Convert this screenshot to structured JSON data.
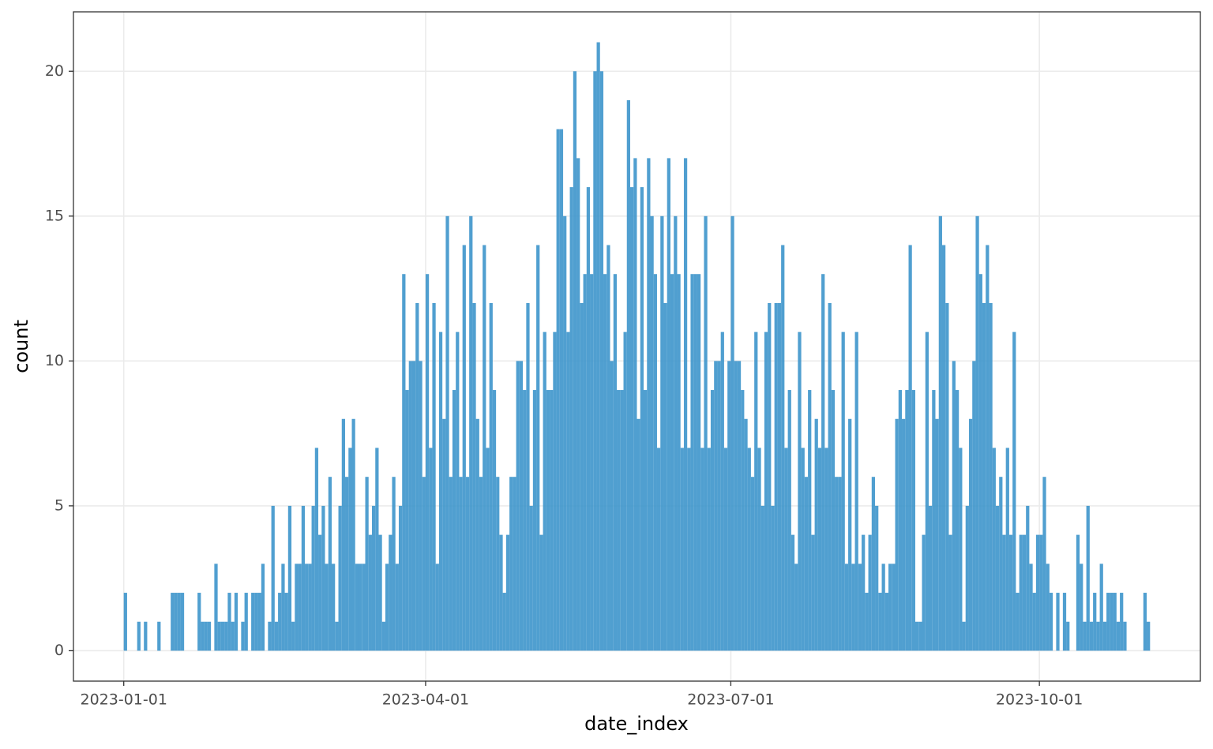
{
  "chart_data": {
    "type": "histogram",
    "x_label": "date_index",
    "y_label": "count",
    "color": "#3d95cb",
    "grid": true,
    "xlim": [
      "2022-12-17",
      "2023-11-18"
    ],
    "ylim": [
      -1.05,
      22.05
    ],
    "xticks": [
      "2023-01-01",
      "2023-04-01",
      "2023-07-01",
      "2023-10-01"
    ],
    "yticks": [
      0,
      5,
      10,
      15,
      20
    ],
    "bins": [
      "2023-01-01",
      "2023-01-02",
      "2023-01-03",
      "2023-01-04",
      "2023-01-05",
      "2023-01-06",
      "2023-01-07",
      "2023-01-08",
      "2023-01-09",
      "2023-01-10",
      "2023-01-11",
      "2023-01-12",
      "2023-01-13",
      "2023-01-14",
      "2023-01-15",
      "2023-01-16",
      "2023-01-17",
      "2023-01-18",
      "2023-01-19",
      "2023-01-20",
      "2023-01-21",
      "2023-01-22",
      "2023-01-23",
      "2023-01-24",
      "2023-01-25",
      "2023-01-26",
      "2023-01-27",
      "2023-01-28",
      "2023-01-29",
      "2023-01-30",
      "2023-01-31",
      "2023-02-01",
      "2023-02-02",
      "2023-02-03",
      "2023-02-04",
      "2023-02-05",
      "2023-02-06",
      "2023-02-07",
      "2023-02-08",
      "2023-02-09",
      "2023-02-10",
      "2023-02-11",
      "2023-02-12",
      "2023-02-13",
      "2023-02-14",
      "2023-02-15",
      "2023-02-16",
      "2023-02-17",
      "2023-02-18",
      "2023-02-19",
      "2023-02-20",
      "2023-02-21",
      "2023-02-22",
      "2023-02-23",
      "2023-02-24",
      "2023-02-25",
      "2023-02-26",
      "2023-02-27",
      "2023-02-28",
      "2023-03-01",
      "2023-03-02",
      "2023-03-03",
      "2023-03-04",
      "2023-03-05",
      "2023-03-06",
      "2023-03-07",
      "2023-03-08",
      "2023-03-09",
      "2023-03-10",
      "2023-03-11",
      "2023-03-12",
      "2023-03-13",
      "2023-03-14",
      "2023-03-15",
      "2023-03-16",
      "2023-03-17",
      "2023-03-18",
      "2023-03-19",
      "2023-03-20",
      "2023-03-21",
      "2023-03-22",
      "2023-03-23",
      "2023-03-24",
      "2023-03-25",
      "2023-03-26",
      "2023-03-27",
      "2023-03-28",
      "2023-03-29",
      "2023-03-30",
      "2023-03-31",
      "2023-04-01",
      "2023-04-02",
      "2023-04-03",
      "2023-04-04",
      "2023-04-05",
      "2023-04-06",
      "2023-04-07",
      "2023-04-08",
      "2023-04-09",
      "2023-04-10",
      "2023-04-11",
      "2023-04-12",
      "2023-04-13",
      "2023-04-14",
      "2023-04-15",
      "2023-04-16",
      "2023-04-17",
      "2023-04-18",
      "2023-04-19",
      "2023-04-20",
      "2023-04-21",
      "2023-04-22",
      "2023-04-23",
      "2023-04-24",
      "2023-04-25",
      "2023-04-26",
      "2023-04-27",
      "2023-04-28",
      "2023-04-29",
      "2023-04-30",
      "2023-05-01",
      "2023-05-02",
      "2023-05-03",
      "2023-05-04",
      "2023-05-05",
      "2023-05-06",
      "2023-05-07",
      "2023-05-08",
      "2023-05-09",
      "2023-05-10",
      "2023-05-11",
      "2023-05-12",
      "2023-05-13",
      "2023-05-14",
      "2023-05-15",
      "2023-05-16",
      "2023-05-17",
      "2023-05-18",
      "2023-05-19",
      "2023-05-20",
      "2023-05-21",
      "2023-05-22",
      "2023-05-23",
      "2023-05-24",
      "2023-05-25",
      "2023-05-26",
      "2023-05-27",
      "2023-05-28",
      "2023-05-29",
      "2023-05-30",
      "2023-05-31",
      "2023-06-01",
      "2023-06-02",
      "2023-06-03",
      "2023-06-04",
      "2023-06-05",
      "2023-06-06",
      "2023-06-07",
      "2023-06-08",
      "2023-06-09",
      "2023-06-10",
      "2023-06-11",
      "2023-06-12",
      "2023-06-13",
      "2023-06-14",
      "2023-06-15",
      "2023-06-16",
      "2023-06-17",
      "2023-06-18",
      "2023-06-19",
      "2023-06-20",
      "2023-06-21",
      "2023-06-22",
      "2023-06-23",
      "2023-06-24",
      "2023-06-25",
      "2023-06-26",
      "2023-06-27",
      "2023-06-28",
      "2023-06-29",
      "2023-06-30",
      "2023-07-01",
      "2023-07-02",
      "2023-07-03",
      "2023-07-04",
      "2023-07-05",
      "2023-07-06",
      "2023-07-07",
      "2023-07-08",
      "2023-07-09",
      "2023-07-10",
      "2023-07-11",
      "2023-07-12",
      "2023-07-13",
      "2023-07-14",
      "2023-07-15",
      "2023-07-16",
      "2023-07-17",
      "2023-07-18",
      "2023-07-19",
      "2023-07-20",
      "2023-07-21",
      "2023-07-22",
      "2023-07-23",
      "2023-07-24",
      "2023-07-25",
      "2023-07-26",
      "2023-07-27",
      "2023-07-28",
      "2023-07-29",
      "2023-07-30",
      "2023-07-31",
      "2023-08-01",
      "2023-08-02",
      "2023-08-03",
      "2023-08-04",
      "2023-08-05",
      "2023-08-06",
      "2023-08-07",
      "2023-08-08",
      "2023-08-09",
      "2023-08-10",
      "2023-08-11",
      "2023-08-12",
      "2023-08-13",
      "2023-08-14",
      "2023-08-15",
      "2023-08-16",
      "2023-08-17",
      "2023-08-18",
      "2023-08-19",
      "2023-08-20",
      "2023-08-21",
      "2023-08-22",
      "2023-08-23",
      "2023-08-24",
      "2023-08-25",
      "2023-08-26",
      "2023-08-27",
      "2023-08-28",
      "2023-08-29",
      "2023-08-30",
      "2023-08-31",
      "2023-09-01",
      "2023-09-02",
      "2023-09-03",
      "2023-09-04",
      "2023-09-05",
      "2023-09-06",
      "2023-09-07",
      "2023-09-08",
      "2023-09-09",
      "2023-09-10",
      "2023-09-11",
      "2023-09-12",
      "2023-09-13",
      "2023-09-14",
      "2023-09-15",
      "2023-09-16",
      "2023-09-17",
      "2023-09-18",
      "2023-09-19",
      "2023-09-20",
      "2023-09-21",
      "2023-09-22",
      "2023-09-23",
      "2023-09-24",
      "2023-09-25",
      "2023-09-26",
      "2023-09-27",
      "2023-09-28",
      "2023-09-29",
      "2023-09-30",
      "2023-10-01",
      "2023-10-02",
      "2023-10-03",
      "2023-10-04",
      "2023-10-05",
      "2023-10-06",
      "2023-10-07",
      "2023-10-08",
      "2023-10-09",
      "2023-10-10",
      "2023-10-11",
      "2023-10-12",
      "2023-10-13",
      "2023-10-14",
      "2023-10-15",
      "2023-10-16",
      "2023-10-17",
      "2023-10-18",
      "2023-10-19",
      "2023-10-20",
      "2023-10-21",
      "2023-10-22",
      "2023-10-23",
      "2023-10-24",
      "2023-10-25",
      "2023-10-26",
      "2023-10-27",
      "2023-10-28",
      "2023-10-29",
      "2023-10-30",
      "2023-10-31",
      "2023-11-01",
      "2023-11-02",
      "2023-11-03"
    ],
    "values": [
      2,
      0,
      0,
      0,
      1,
      0,
      1,
      0,
      0,
      0,
      1,
      0,
      0,
      0,
      2,
      2,
      2,
      2,
      0,
      0,
      0,
      0,
      2,
      1,
      1,
      1,
      0,
      3,
      1,
      1,
      1,
      2,
      1,
      2,
      0,
      1,
      2,
      0,
      2,
      2,
      2,
      3,
      0,
      1,
      5,
      1,
      2,
      3,
      2,
      5,
      1,
      3,
      3,
      5,
      3,
      3,
      5,
      7,
      4,
      5,
      3,
      6,
      3,
      1,
      5,
      8,
      6,
      7,
      8,
      3,
      3,
      3,
      6,
      4,
      5,
      7,
      4,
      1,
      3,
      4,
      6,
      3,
      5,
      13,
      9,
      10,
      10,
      12,
      10,
      6,
      13,
      7,
      12,
      3,
      11,
      8,
      15,
      6,
      9,
      11,
      6,
      14,
      6,
      15,
      12,
      8,
      6,
      14,
      7,
      12,
      9,
      6,
      4,
      2,
      4,
      6,
      6,
      10,
      10,
      9,
      12,
      5,
      9,
      14,
      4,
      11,
      9,
      9,
      11,
      18,
      18,
      15,
      11,
      16,
      20,
      17,
      12,
      13,
      16,
      13,
      20,
      21,
      20,
      13,
      14,
      10,
      13,
      9,
      9,
      11,
      19,
      16,
      17,
      8,
      16,
      9,
      17,
      15,
      13,
      7,
      15,
      12,
      17,
      13,
      15,
      13,
      7,
      17,
      7,
      13,
      13,
      13,
      7,
      15,
      7,
      9,
      10,
      10,
      11,
      7,
      10,
      15,
      10,
      10,
      9,
      8,
      7,
      6,
      11,
      7,
      5,
      11,
      12,
      5,
      12,
      12,
      14,
      7,
      9,
      4,
      3,
      11,
      7,
      6,
      9,
      4,
      8,
      7,
      13,
      7,
      12,
      9,
      6,
      6,
      11,
      3,
      8,
      3,
      11,
      3,
      4,
      2,
      4,
      6,
      5,
      2,
      3,
      2,
      3,
      3,
      8,
      9,
      8,
      9,
      14,
      9,
      1,
      1,
      4,
      11,
      5,
      9,
      8,
      15,
      14,
      12,
      4,
      10,
      9,
      7,
      1,
      5,
      8,
      10,
      15,
      13,
      12,
      14,
      12,
      7,
      5,
      6,
      4,
      7,
      4,
      11,
      2,
      4,
      4,
      5,
      3,
      2,
      4,
      4,
      6,
      3,
      2,
      0,
      2,
      0,
      2,
      1,
      0,
      0,
      4,
      3,
      1,
      5,
      1,
      2,
      1,
      3,
      1,
      2,
      2,
      2,
      1,
      2,
      1,
      0,
      0,
      0,
      0,
      0,
      2,
      1
    ]
  }
}
